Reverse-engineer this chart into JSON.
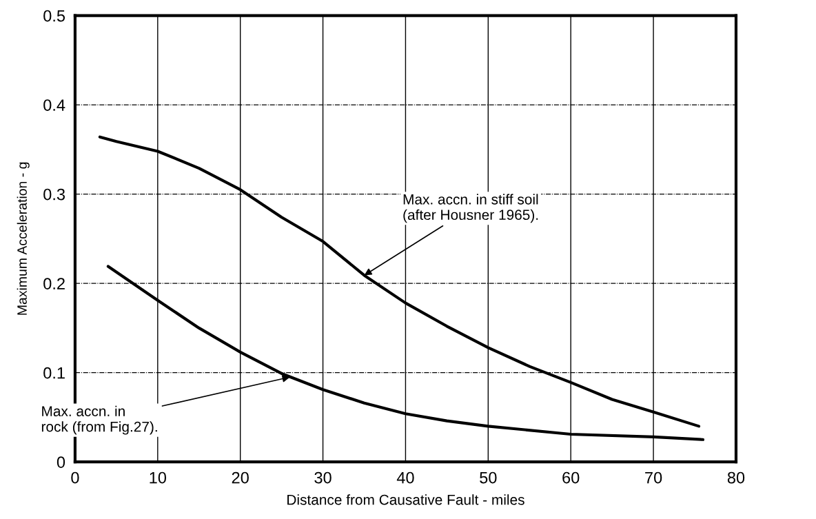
{
  "chart_data": {
    "type": "line",
    "xlabel": "Distance from Causative Fault - miles",
    "ylabel": "Maximum Acceleration - g",
    "xlim": [
      0,
      80
    ],
    "xticks": [
      0,
      10,
      20,
      30,
      40,
      50,
      60,
      70,
      80
    ],
    "ylim": [
      0,
      0.5
    ],
    "yticks": [
      0,
      0.1,
      0.2,
      0.3,
      0.4,
      0.5
    ],
    "grid": true,
    "legend": false,
    "marker": "none",
    "line_style": "solid",
    "series": [
      {
        "color": "#000000",
        "x": [
          3,
          5,
          10,
          15,
          20,
          25,
          30,
          35,
          40,
          45,
          50,
          55,
          60,
          65,
          70,
          75.5
        ],
        "values": [
          0.364,
          0.359,
          0.348,
          0.329,
          0.305,
          0.274,
          0.247,
          0.209,
          0.178,
          0.152,
          0.128,
          0.107,
          0.089,
          0.07,
          0.056,
          0.04
        ]
      },
      {
        "color": "#000000",
        "x": [
          4,
          10,
          15,
          20,
          25,
          30,
          35,
          40,
          45,
          50,
          60,
          70,
          76
        ],
        "values": [
          0.219,
          0.181,
          0.15,
          0.123,
          0.099,
          0.081,
          0.066,
          0.054,
          0.046,
          0.04,
          0.031,
          0.028,
          0.025
        ]
      }
    ],
    "annotations": [
      {
        "text": "Max. accn. in stiff soil\n(after Housner 1965).",
        "x": 35,
        "y": 0.209
      },
      {
        "text": "Max. accn. in\nrock (from Fig.27).",
        "x": 26,
        "y": 0.095
      }
    ]
  }
}
